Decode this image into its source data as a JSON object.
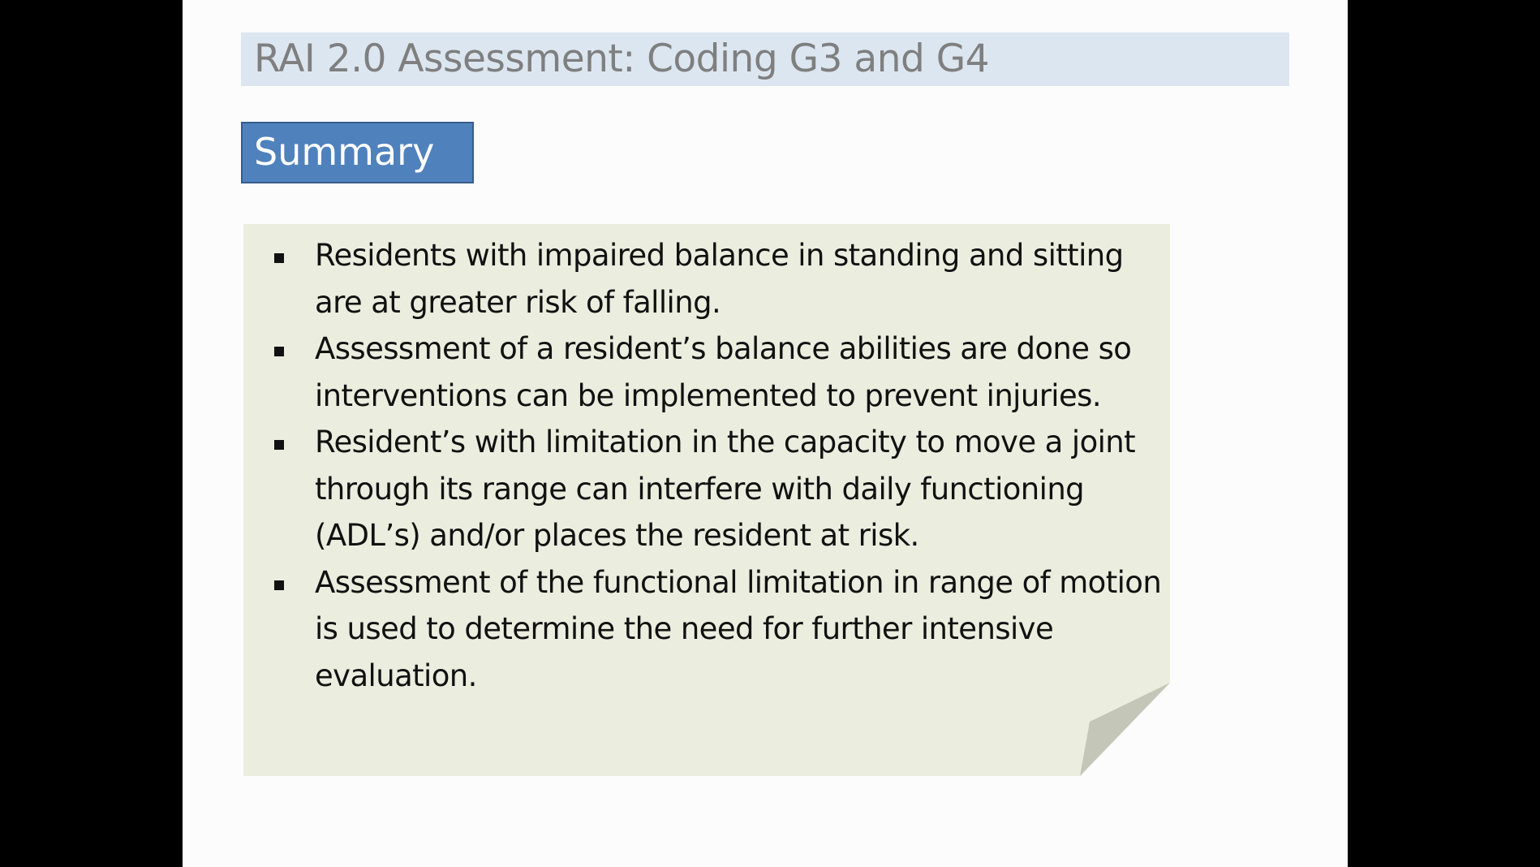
{
  "slide": {
    "title": "RAI 2.0 Assessment: Coding G3 and G4",
    "section_label": "Summary",
    "bullets": [
      "Residents with impaired balance in standing and sitting are at greater risk of falling.",
      "Assessment of a resident’s balance abilities are done so interventions can be implemented to prevent injuries.",
      "Resident’s with limitation in the capacity to move a joint through its range can interfere with daily functioning (ADL’s) and/or places the resident at risk.",
      "Assessment of the functional limitation in range of motion is used to determine the need for further intensive evaluation."
    ]
  },
  "colors": {
    "title_bar_bg": "#dce6f1",
    "title_text": "#7f7f7f",
    "summary_bg": "#4f81bd",
    "note_bg": "#ebeddf",
    "note_fold": "#c4c6b8"
  }
}
